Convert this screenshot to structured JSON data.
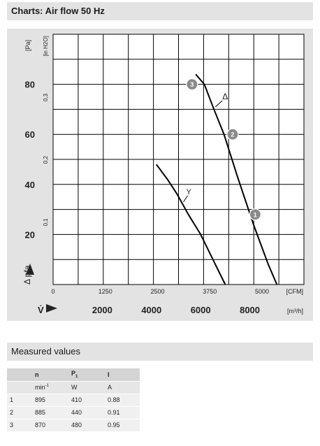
{
  "header": {
    "title": "Charts: Air flow 50 Hz"
  },
  "chart_data": {
    "type": "line",
    "yaxis_left": {
      "label": "[Pa]",
      "ticks": [
        20,
        40,
        60,
        80
      ],
      "ylim": [
        0,
        100
      ]
    },
    "yaxis_inh2o": {
      "label": "[in H2O]",
      "ticks": [
        "0,1",
        "0,2",
        "0,3"
      ]
    },
    "ylabel": "Δ pfa",
    "xaxis_cfm": {
      "ticks": [
        "0",
        "1250",
        "2500",
        "3750",
        "5000"
      ],
      "unit": "[CFM]"
    },
    "xaxis_m3h": {
      "ticks": [
        "2000",
        "4000",
        "6000",
        "8000"
      ],
      "unit": "[m³/h]",
      "xlim": [
        0,
        10200
      ]
    },
    "xlabel": "V̇",
    "grid": true,
    "series": [
      {
        "name": "Δ",
        "x": [
          5800,
          6150,
          6500,
          6950,
          7500,
          8150,
          8750,
          9100
        ],
        "y": [
          84,
          80,
          71,
          60,
          43,
          24,
          8,
          0
        ]
      },
      {
        "name": "Y",
        "x": [
          4200,
          4650,
          5050,
          5500,
          6000,
          6450,
          6800,
          7000
        ],
        "y": [
          48,
          42,
          36,
          28,
          20,
          11,
          4,
          0
        ]
      }
    ],
    "points": [
      {
        "label": "1",
        "x": 8220,
        "y": 28
      },
      {
        "label": "2",
        "x": 7300,
        "y": 60
      },
      {
        "label": "3",
        "x": 5650,
        "y": 80
      }
    ]
  },
  "measured": {
    "title": "Measured values",
    "headers": {
      "n": "n",
      "p_main": "P",
      "p_sub": "1",
      "i": "I"
    },
    "units": {
      "n_main": "min",
      "n_sup": "-1",
      "p": "W",
      "i": "A"
    },
    "rows": [
      {
        "no": "1",
        "n": "895",
        "p": "410",
        "i": "0.88"
      },
      {
        "no": "2",
        "n": "885",
        "p": "440",
        "i": "0.91"
      },
      {
        "no": "3",
        "n": "870",
        "p": "480",
        "i": "0.95"
      }
    ]
  }
}
